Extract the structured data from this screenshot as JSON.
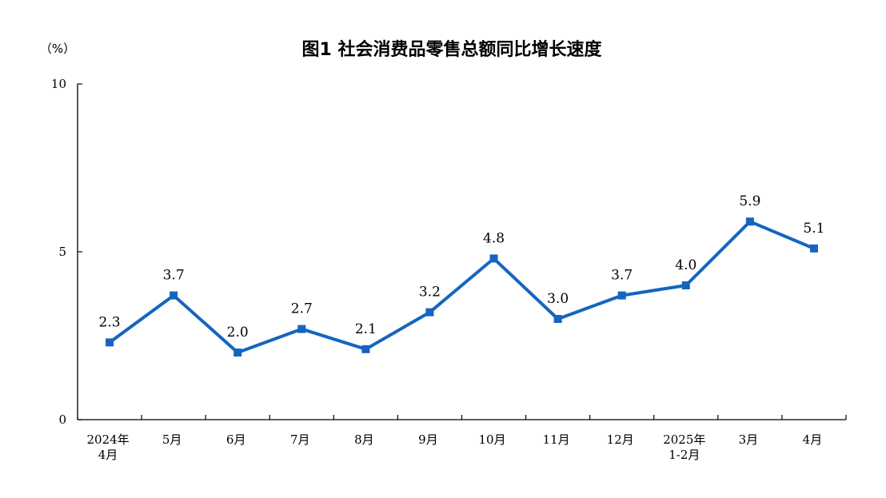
{
  "chart_data": {
    "type": "line",
    "title": "图1  社会消费品零售总额同比增长速度",
    "ylabel": "（%）",
    "ylim": [
      0,
      10
    ],
    "yticks": [
      "0",
      "5",
      "10"
    ],
    "categories": [
      [
        "2024年",
        "4月"
      ],
      [
        "5月"
      ],
      [
        "6月"
      ],
      [
        "7月"
      ],
      [
        "8月"
      ],
      [
        "9月"
      ],
      [
        "10月"
      ],
      [
        "11月"
      ],
      [
        "12月"
      ],
      [
        "2025年",
        "1-2月"
      ],
      [
        "3月"
      ],
      [
        "4月"
      ]
    ],
    "series": [
      {
        "values": [
          2.3,
          3.7,
          2.0,
          2.7,
          2.1,
          3.2,
          4.8,
          3.0,
          3.7,
          4.0,
          5.9,
          5.1
        ],
        "labels": [
          "2.3",
          "3.7",
          "2.0",
          "2.7",
          "2.1",
          "3.2",
          "4.8",
          "3.0",
          "3.7",
          "4.0",
          "5.9",
          "5.1"
        ],
        "color": "#1565C0"
      }
    ],
    "grid": false,
    "legend": "none"
  }
}
